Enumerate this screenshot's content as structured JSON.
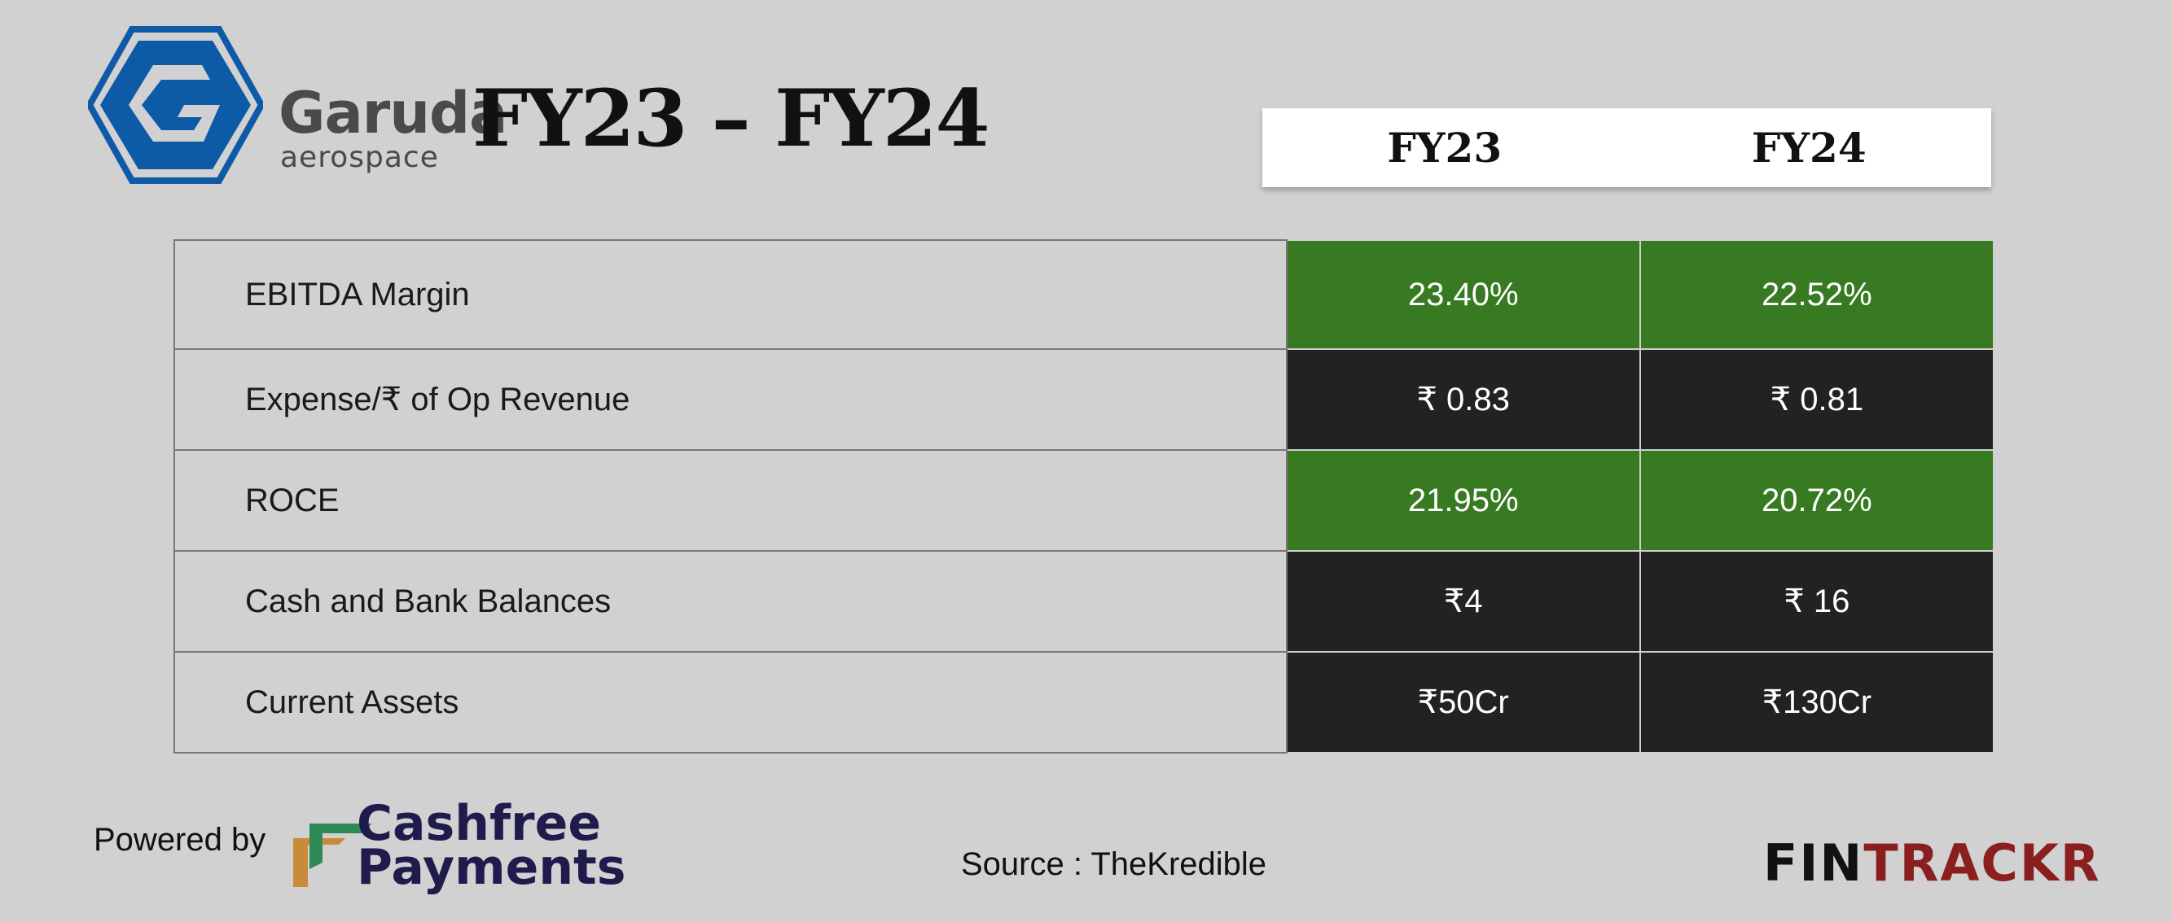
{
  "brand": {
    "name": "Garuda",
    "tagline": "aerospace",
    "logo_color": "#0d5aa7"
  },
  "title": "FY23 – FY24",
  "columns": [
    "FY23",
    "FY24"
  ],
  "rows": [
    {
      "label": "EBITDA Margin",
      "values": [
        "23.40%",
        "22.52%"
      ],
      "style": "green"
    },
    {
      "label": "Expense/₹ of Op Revenue",
      "values": [
        "₹ 0.83",
        "₹ 0.81"
      ],
      "style": "dark"
    },
    {
      "label": "ROCE",
      "values": [
        "21.95%",
        "20.72%"
      ],
      "style": "green"
    },
    {
      "label": "Cash and Bank Balances",
      "values": [
        "₹4",
        "₹ 16"
      ],
      "style": "dark"
    },
    {
      "label": "Current Assets",
      "values": [
        "₹50Cr",
        "₹130Cr"
      ],
      "style": "dark"
    }
  ],
  "footer": {
    "powered_by": "Powered by",
    "sponsor_line1": "Cashfree",
    "sponsor_line2": "Payments",
    "source": "Source : TheKredible",
    "fintrackr_a": "FIN",
    "fintrackr_b": "TRACKR"
  },
  "colors": {
    "green": "#377a22",
    "dark": "#222222",
    "background": "#d1d1d1",
    "fintrackr_red": "#8b1f1f"
  }
}
